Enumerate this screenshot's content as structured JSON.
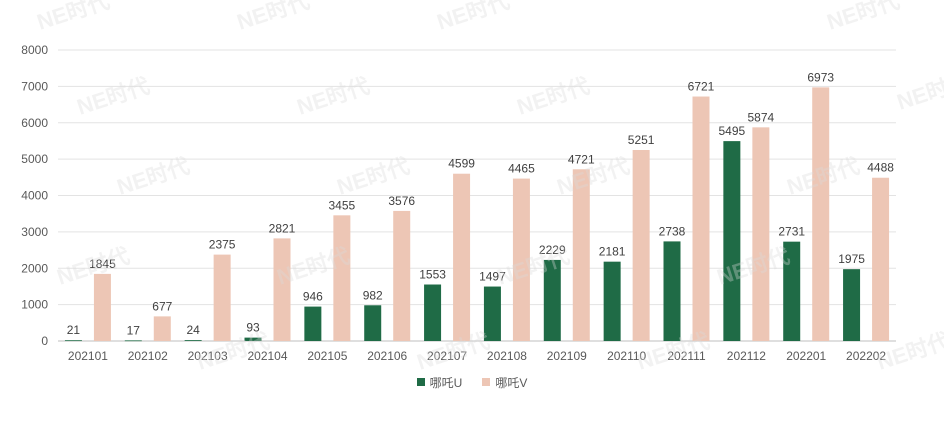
{
  "chart_data": {
    "type": "bar",
    "title": "",
    "xlabel": "",
    "ylabel": "",
    "ylim": [
      0,
      8000
    ],
    "yticks": [
      0,
      1000,
      2000,
      3000,
      4000,
      5000,
      6000,
      7000,
      8000
    ],
    "grid": true,
    "legend_position": "bottom",
    "categories": [
      "202101",
      "202102",
      "202103",
      "202104",
      "202105",
      "202106",
      "202107",
      "202108",
      "202109",
      "202110",
      "202111",
      "202112",
      "202201",
      "202202"
    ],
    "series": [
      {
        "name": "哪吒U",
        "color": "#1f6b46",
        "values": [
          21,
          17,
          24,
          93,
          946,
          982,
          1553,
          1497,
          2229,
          2181,
          2738,
          5495,
          2731,
          1975
        ]
      },
      {
        "name": "哪吒V",
        "color": "#edc6b5",
        "values": [
          1845,
          677,
          2375,
          2821,
          3455,
          3576,
          4599,
          4465,
          4721,
          5251,
          6721,
          5874,
          6973,
          4488
        ]
      }
    ]
  },
  "watermark": "NE时代"
}
